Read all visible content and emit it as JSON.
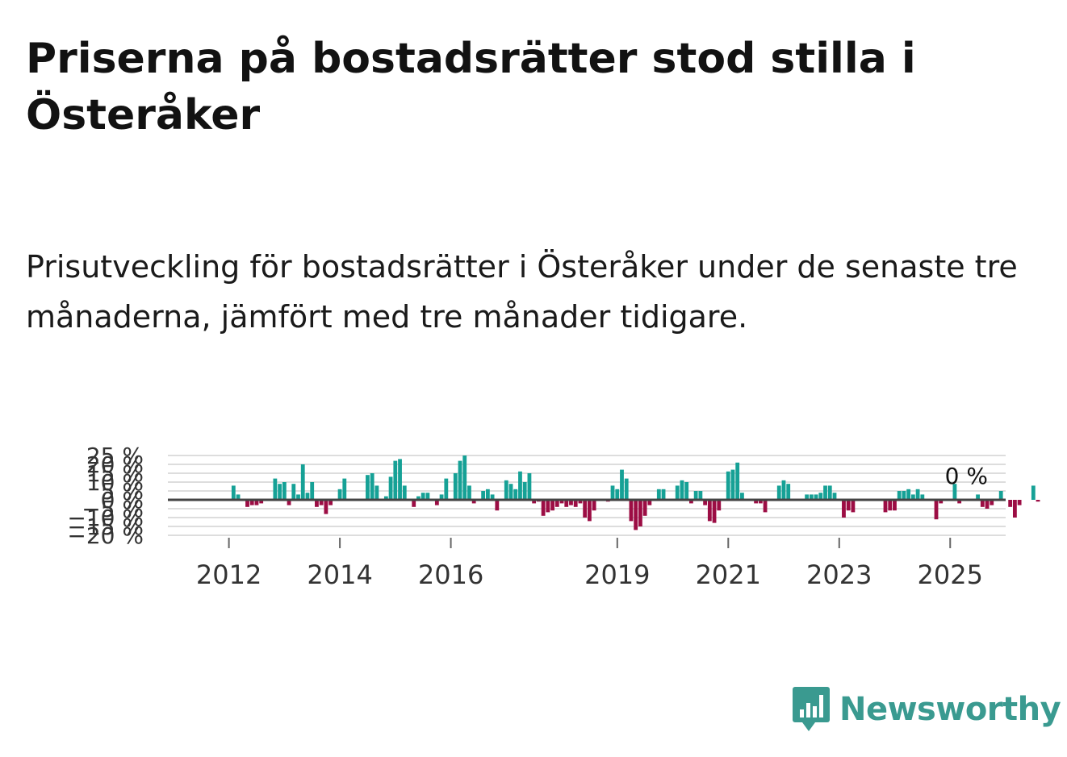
{
  "header": {
    "title": "Priserna på bostadsrätter stod stilla i Österåker",
    "subtitle": "Prisutveckling för bostadsrätter i Österåker under de senaste tre månaderna, jämfört med tre månader tidigare."
  },
  "logo": {
    "text": "Newsworthy",
    "icon": "bar-chart-badge-icon"
  },
  "colors": {
    "positive": "#16a196",
    "negative": "#9c0d44",
    "zero_line": "#444444",
    "grid": "#dddddd",
    "brand": "#3a9a90"
  },
  "chart_data": {
    "type": "bar",
    "title": "",
    "xlabel": "",
    "ylabel": "",
    "ylim": [
      -20,
      25
    ],
    "yticks": [
      -20,
      -15,
      -10,
      -5,
      0,
      5,
      10,
      15,
      20,
      25
    ],
    "ytick_labels": [
      "−20 %",
      "−15 %",
      "−10 %",
      "−5 %",
      "0 %",
      "5 %",
      "10 %",
      "15 %",
      "20 %",
      "25 %"
    ],
    "x_start": 2011.083,
    "x_step": 0.08333,
    "xticks": [
      2012,
      2014,
      2016,
      2019,
      2021,
      2023,
      2025
    ],
    "xtick_labels": [
      "2012",
      "2014",
      "2016",
      "2019",
      "2021",
      "2023",
      "2025"
    ],
    "last_value_label": "0 %",
    "values": [
      0,
      0,
      0,
      0,
      0,
      0,
      0,
      0,
      0,
      0,
      0,
      0,
      8,
      3,
      0,
      -4,
      -3,
      -3,
      -2,
      0,
      0,
      12,
      9,
      10,
      -3,
      9,
      3,
      20,
      4,
      10,
      -4,
      -3,
      -8,
      -3,
      0,
      6,
      12,
      0,
      0,
      0,
      0,
      14,
      15,
      8,
      0,
      2,
      13,
      22,
      23,
      8,
      0,
      -4,
      2,
      4,
      4,
      0,
      -3,
      3,
      12,
      0,
      15,
      22,
      25,
      8,
      -2,
      0,
      5,
      6,
      3,
      -6,
      0,
      11,
      9,
      6,
      16,
      10,
      15,
      -2,
      -1,
      -9,
      -7,
      -6,
      -4,
      -2,
      -4,
      -3,
      -4,
      -2,
      -10,
      -12,
      -6,
      0,
      0,
      -1,
      8,
      6,
      17,
      12,
      -12,
      -17,
      -15,
      -9,
      -3,
      0,
      6,
      6,
      0,
      0,
      8,
      11,
      10,
      -2,
      5,
      5,
      -3,
      -12,
      -13,
      -6,
      0,
      16,
      17,
      21,
      4,
      0,
      0,
      -2,
      -2,
      -7,
      0,
      0,
      8,
      11,
      9,
      0,
      0,
      0,
      3,
      3,
      3,
      4,
      8,
      8,
      4,
      0,
      -10,
      -6,
      -7,
      0,
      0,
      0,
      0,
      0,
      0,
      -7,
      -6,
      -6,
      5,
      5,
      6,
      3,
      6,
      3,
      0,
      0,
      -11,
      -2,
      0,
      0,
      9,
      -2,
      0,
      0,
      0,
      3,
      -4,
      -5,
      -3,
      0,
      5,
      0,
      -4,
      -10,
      -3,
      0,
      0,
      8,
      -1,
      0,
      0,
      0,
      0,
      0,
      0,
      0,
      0,
      0,
      0,
      0
    ]
  }
}
